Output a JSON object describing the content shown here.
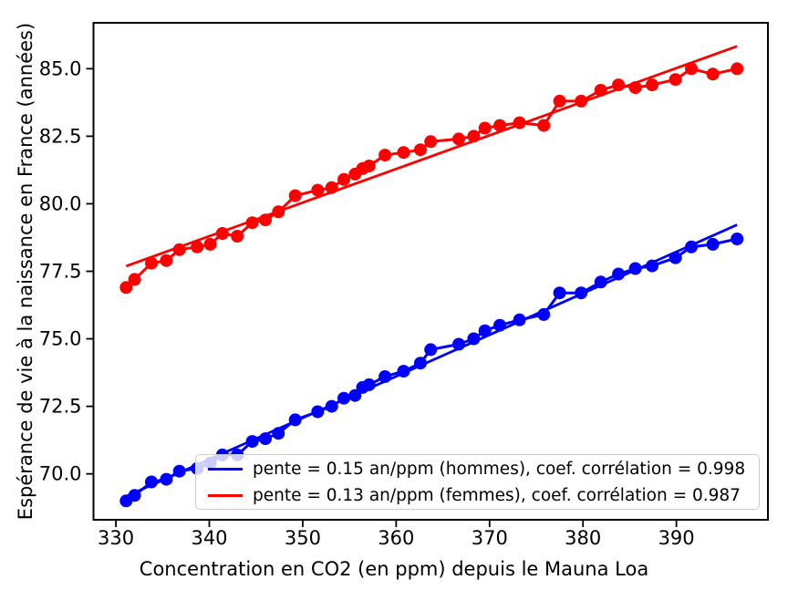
{
  "figure": {
    "background": "#ffffff"
  },
  "chart_data": {
    "type": "scatter",
    "title": "",
    "xlabel": "Concentration en CO2 (en ppm) depuis le Mauna Loa",
    "ylabel": "Espérance de vie à la naissance en France (années)",
    "xticks": [
      330,
      340,
      350,
      360,
      370,
      380,
      390
    ],
    "yticks": [
      70.0,
      72.5,
      75.0,
      77.5,
      80.0,
      82.5,
      85.0
    ],
    "xlim": [
      327.6,
      399.8
    ],
    "ylim": [
      68.3,
      86.7
    ],
    "grid": false,
    "legend_position": "lower center",
    "axis_color": "#000000",
    "x": [
      331.1,
      332.0,
      333.8,
      335.4,
      336.8,
      338.7,
      340.1,
      341.4,
      343.0,
      344.6,
      346.0,
      347.4,
      349.2,
      351.6,
      353.1,
      354.4,
      355.6,
      356.4,
      357.1,
      358.8,
      360.8,
      362.6,
      363.7,
      366.7,
      368.3,
      369.5,
      371.1,
      373.2,
      375.8,
      377.5,
      379.8,
      381.9,
      383.8,
      385.6,
      387.4,
      389.9,
      391.6,
      393.9,
      396.5
    ],
    "series": [
      {
        "name": "hommes",
        "color": "#0000ff",
        "marker": "circle",
        "has_trend_line": true,
        "fit_label": "pente = 0.15 an/ppm (hommes), coef. corrélation = 0.998",
        "values": [
          69.0,
          69.2,
          69.7,
          69.8,
          70.1,
          70.2,
          70.4,
          70.7,
          70.7,
          71.2,
          71.3,
          71.5,
          72.0,
          72.3,
          72.5,
          72.8,
          72.9,
          73.2,
          73.3,
          73.6,
          73.8,
          74.1,
          74.6,
          74.8,
          75.0,
          75.3,
          75.5,
          75.7,
          75.9,
          76.7,
          76.7,
          77.1,
          77.4,
          77.6,
          77.7,
          78.0,
          78.4,
          78.5,
          78.7
        ]
      },
      {
        "name": "femmes",
        "color": "#ff0000",
        "marker": "circle",
        "has_trend_line": true,
        "fit_label": "pente = 0.13 an/ppm (femmes), coef. corrélation = 0.987",
        "values": [
          76.9,
          77.2,
          77.8,
          77.9,
          78.3,
          78.4,
          78.5,
          78.9,
          78.8,
          79.3,
          79.4,
          79.7,
          80.3,
          80.5,
          80.6,
          80.9,
          81.1,
          81.3,
          81.4,
          81.8,
          81.9,
          82.0,
          82.3,
          82.4,
          82.5,
          82.8,
          82.9,
          83.0,
          82.9,
          83.8,
          83.8,
          84.2,
          84.4,
          84.3,
          84.4,
          84.6,
          85.0,
          84.8,
          85.0
        ]
      }
    ]
  }
}
